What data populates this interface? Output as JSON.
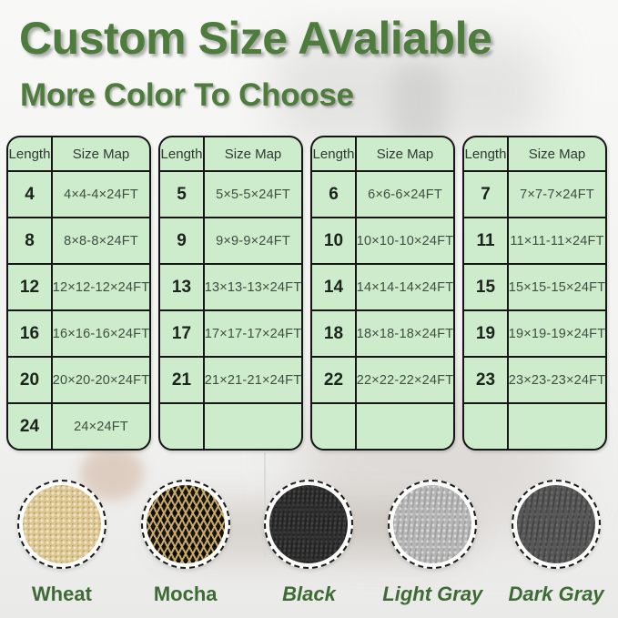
{
  "header": {
    "title": "Custom Size Avaliable",
    "subtitle": "More Color To Choose",
    "accent_color": "#4e7c3c"
  },
  "tables": [
    {
      "columns": [
        "Length",
        "Size Map"
      ],
      "rows": [
        [
          "4",
          "4×4-4×24FT"
        ],
        [
          "8",
          "8×8-8×24FT"
        ],
        [
          "12",
          "12×12-12×24FT"
        ],
        [
          "16",
          "16×16-16×24FT"
        ],
        [
          "20",
          "20×20-20×24FT"
        ],
        [
          "24",
          "24×24FT"
        ]
      ]
    },
    {
      "columns": [
        "Length",
        "Size Map"
      ],
      "rows": [
        [
          "5",
          "5×5-5×24FT"
        ],
        [
          "9",
          "9×9-9×24FT"
        ],
        [
          "13",
          "13×13-13×24FT"
        ],
        [
          "17",
          "17×17-17×24FT"
        ],
        [
          "21",
          "21×21-21×24FT"
        ],
        [
          "",
          ""
        ]
      ]
    },
    {
      "columns": [
        "Length",
        "Size Map"
      ],
      "rows": [
        [
          "6",
          "6×6-6×24FT"
        ],
        [
          "10",
          "10×10-10×24FT"
        ],
        [
          "14",
          "14×14-14×24FT"
        ],
        [
          "18",
          "18×18-18×24FT"
        ],
        [
          "22",
          "22×22-22×24FT"
        ],
        [
          "",
          ""
        ]
      ]
    },
    {
      "columns": [
        "Length",
        "Size Map"
      ],
      "rows": [
        [
          "7",
          "7×7-7×24FT"
        ],
        [
          "11",
          "11×11-11×24FT"
        ],
        [
          "15",
          "15×15-15×24FT"
        ],
        [
          "19",
          "19×19-19×24FT"
        ],
        [
          "23",
          "23×23-23×24FT"
        ],
        [
          "",
          ""
        ]
      ]
    }
  ],
  "table_style": {
    "cell_bg": "#cdeccb",
    "border": "#161616"
  },
  "colors": [
    {
      "name": "Wheat",
      "swatch": "#dbc48e"
    },
    {
      "name": "Mocha",
      "swatch": "#1a150e"
    },
    {
      "name": "Black",
      "swatch": "#2e2e2e"
    },
    {
      "name": "Light Gray",
      "swatch": "#b5b5b5"
    },
    {
      "name": "Dark Gray",
      "swatch": "#575757"
    }
  ],
  "label_color": "#3e6b35"
}
